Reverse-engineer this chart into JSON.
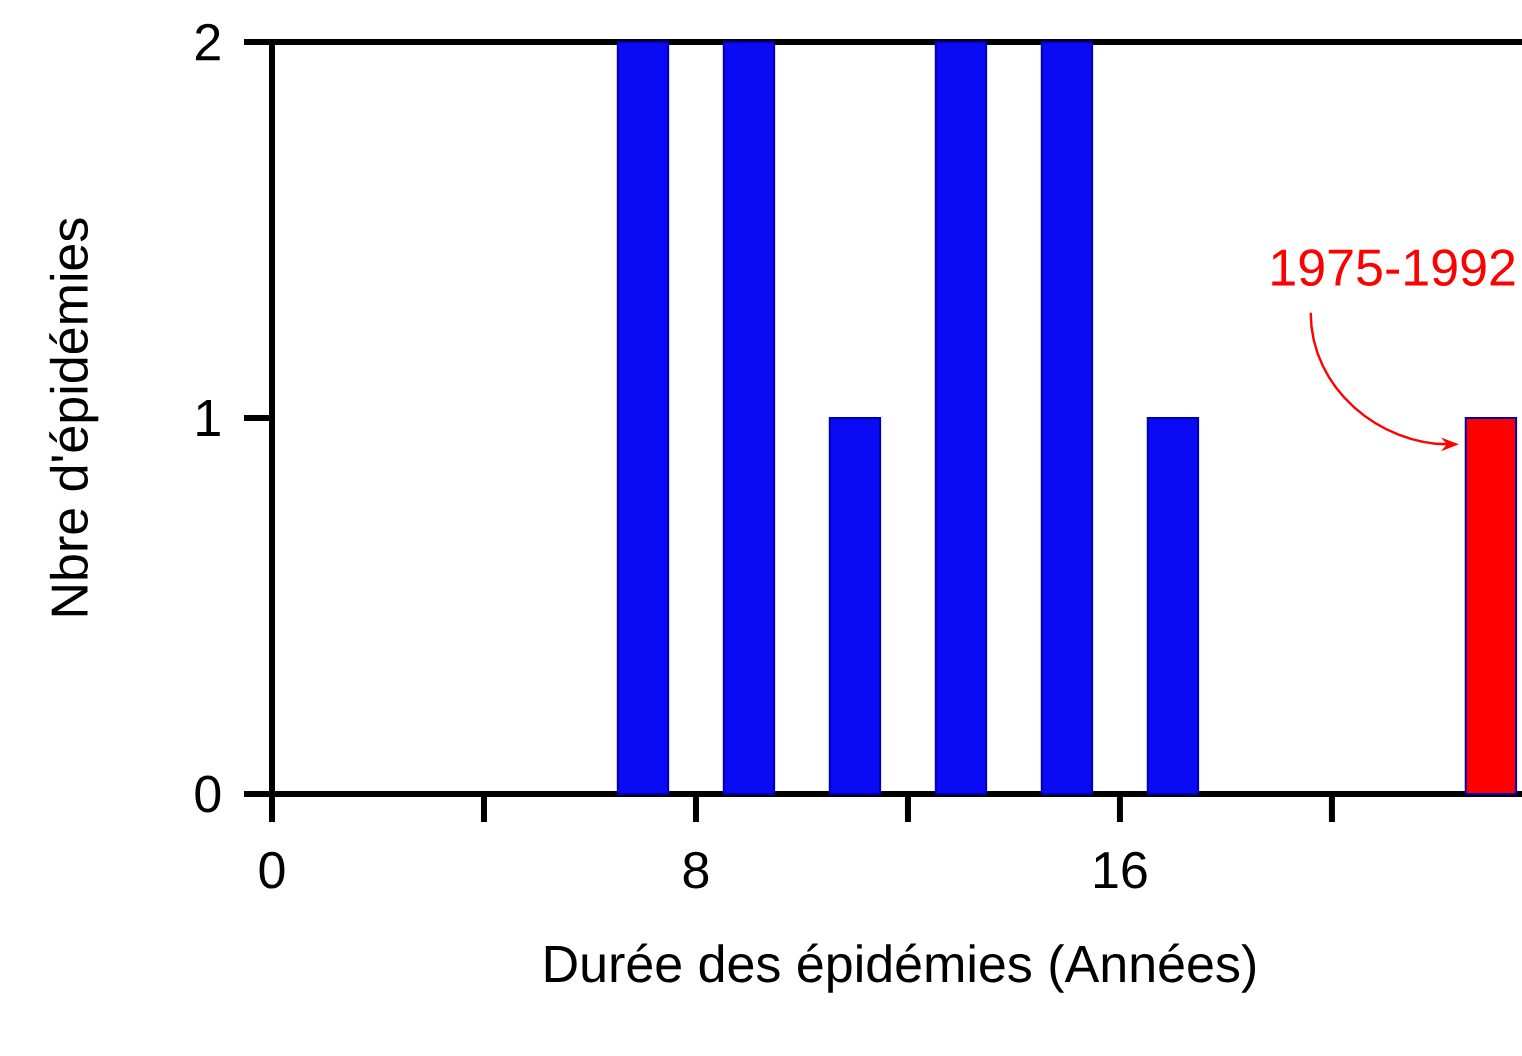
{
  "chart_data": {
    "type": "bar",
    "xlabel": "Durée des épidémies (Années)",
    "ylabel": "Nbre d'épidémies",
    "x": [
      7,
      9,
      11,
      13,
      15,
      17,
      23
    ],
    "values": [
      2,
      2,
      1,
      2,
      2,
      1,
      1
    ],
    "colors": [
      "#0a0af5",
      "#0a0af5",
      "#0a0af5",
      "#0a0af5",
      "#0a0af5",
      "#0a0af5",
      "#ff0000"
    ],
    "xlim": [
      0,
      23.7
    ],
    "ylim": [
      0,
      2
    ],
    "xticks": [
      0,
      {
        "value": 4,
        "label": null
      },
      8,
      {
        "value": 12,
        "label": null
      },
      16,
      {
        "value": 20,
        "label": null
      }
    ],
    "yticks": [
      0,
      1,
      2
    ],
    "annotations": [
      {
        "text": "1975-1992",
        "x": 23,
        "y": 1
      }
    ]
  }
}
